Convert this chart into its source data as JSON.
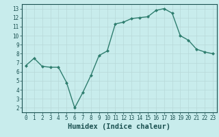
{
  "x": [
    0,
    1,
    2,
    3,
    4,
    5,
    6,
    7,
    8,
    9,
    10,
    11,
    12,
    13,
    14,
    15,
    16,
    17,
    18,
    19,
    20,
    21,
    22,
    23
  ],
  "y": [
    6.7,
    7.5,
    6.6,
    6.5,
    6.5,
    4.8,
    2.0,
    3.7,
    5.6,
    7.8,
    8.3,
    11.3,
    11.5,
    11.9,
    12.0,
    12.1,
    12.8,
    13.0,
    12.5,
    10.0,
    9.5,
    8.5,
    8.2,
    8.0
  ],
  "line_color": "#2e7d6e",
  "marker": "D",
  "marker_size": 2.0,
  "bg_color": "#c8ecec",
  "grid_color": "#b8d8d8",
  "xlabel": "Humidex (Indice chaleur)",
  "xlim": [
    -0.5,
    23.5
  ],
  "ylim": [
    1.5,
    13.5
  ],
  "yticks": [
    2,
    3,
    4,
    5,
    6,
    7,
    8,
    9,
    10,
    11,
    12,
    13
  ],
  "xticks": [
    0,
    1,
    2,
    3,
    4,
    5,
    6,
    7,
    8,
    9,
    10,
    11,
    12,
    13,
    14,
    15,
    16,
    17,
    18,
    19,
    20,
    21,
    22,
    23
  ],
  "tick_fontsize": 5.5,
  "xlabel_fontsize": 7.5,
  "axis_color": "#1a5050",
  "spine_color": "#1a5050",
  "linewidth": 1.0
}
